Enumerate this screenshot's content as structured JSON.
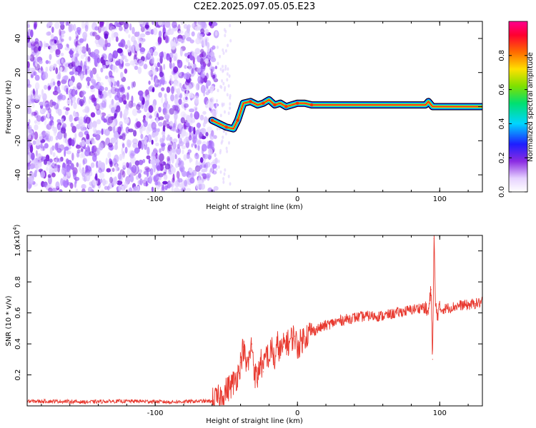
{
  "title": "C2E2.2025.097.05.05.E23",
  "chart_data": [
    {
      "type": "heatmap",
      "xlabel": "Height of straight line (km)",
      "ylabel": "Frequency (Hz)",
      "xlim": [
        -190,
        130
      ],
      "ylim": [
        -50,
        50
      ],
      "x_ticks": [
        -100,
        0,
        100
      ],
      "y_ticks": [
        -40,
        -20,
        0,
        20,
        40
      ],
      "colorbar": {
        "label": "Normalized spectral amplitude",
        "range": [
          0,
          1
        ],
        "ticks": [
          0.0,
          0.2,
          0.4,
          0.6,
          0.8
        ],
        "tick_labels": [
          "0.0",
          "0.2",
          "0.4",
          "0.6",
          "0.8"
        ]
      },
      "features": {
        "noise_region_x": [
          -190,
          -57
        ],
        "signal_track": [
          [
            -60,
            -8
          ],
          [
            -55,
            -10
          ],
          [
            -50,
            -12
          ],
          [
            -45,
            -13
          ],
          [
            -42,
            -8
          ],
          [
            -38,
            2
          ],
          [
            -33,
            3
          ],
          [
            -28,
            1
          ],
          [
            -24,
            2
          ],
          [
            -20,
            4
          ],
          [
            -16,
            1
          ],
          [
            -12,
            2
          ],
          [
            -8,
            0
          ],
          [
            -4,
            1
          ],
          [
            0,
            2
          ],
          [
            5,
            2
          ],
          [
            10,
            1
          ],
          [
            20,
            1
          ],
          [
            40,
            1
          ],
          [
            60,
            1
          ],
          [
            80,
            1
          ],
          [
            90,
            1
          ],
          [
            92,
            3
          ],
          [
            95,
            0
          ],
          [
            100,
            0
          ],
          [
            130,
            0
          ]
        ]
      }
    },
    {
      "type": "line",
      "xlabel": "Height of straight line (km)",
      "ylabel": "SNR (10 * v/v)",
      "y_multiplier": "(x10^4)",
      "xlim": [
        -190,
        130
      ],
      "ylim": [
        0,
        1.1
      ],
      "x_ticks": [
        -100,
        0,
        100
      ],
      "y_ticks": [
        0.2,
        0.4,
        0.6,
        0.8,
        1.0
      ],
      "series": [
        {
          "color": "#e8392f",
          "x": [
            -190,
            -170,
            -150,
            -130,
            -110,
            -90,
            -70,
            -60,
            -55,
            -50,
            -45,
            -42,
            -40,
            -38,
            -36,
            -34,
            -32,
            -30,
            -28,
            -26,
            -24,
            -22,
            -20,
            -18,
            -16,
            -14,
            -12,
            -10,
            -8,
            -6,
            -4,
            -2,
            0,
            5,
            10,
            15,
            20,
            30,
            40,
            50,
            60,
            70,
            80,
            85,
            88,
            90,
            92,
            94,
            95,
            96,
            97,
            98,
            100,
            105,
            110,
            115,
            120,
            125,
            130
          ],
          "y": [
            0.03,
            0.03,
            0.025,
            0.03,
            0.03,
            0.025,
            0.03,
            0.03,
            0.05,
            0.1,
            0.15,
            0.2,
            0.28,
            0.38,
            0.25,
            0.3,
            0.4,
            0.2,
            0.18,
            0.3,
            0.22,
            0.35,
            0.3,
            0.38,
            0.28,
            0.4,
            0.35,
            0.38,
            0.42,
            0.4,
            0.44,
            0.45,
            0.38,
            0.45,
            0.48,
            0.5,
            0.52,
            0.55,
            0.57,
            0.58,
            0.58,
            0.6,
            0.62,
            0.63,
            0.64,
            0.62,
            0.6,
            0.75,
            0.3,
            1.08,
            0.65,
            0.6,
            0.62,
            0.63,
            0.64,
            0.65,
            0.65,
            0.66,
            0.67
          ]
        }
      ]
    }
  ]
}
